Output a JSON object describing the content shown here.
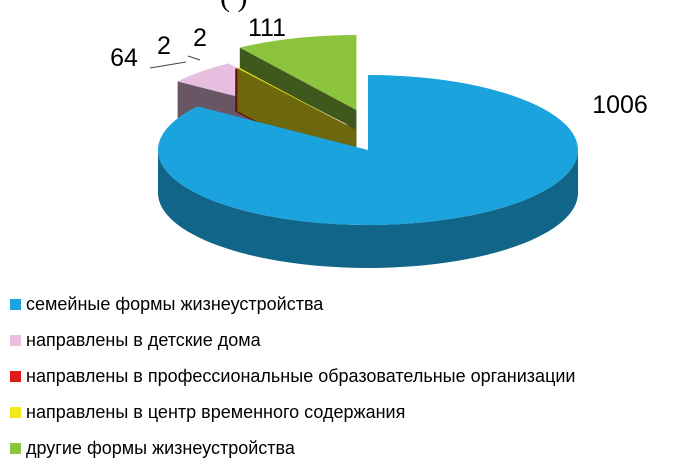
{
  "chart_data": {
    "type": "pie",
    "title": "",
    "categories": [
      "семейные формы жизнеустройства",
      "направлены в детские дома",
      "направлены в профессиональные образовательные организации",
      "направлены в центр временного содержания",
      "другие формы жизнеустройства"
    ],
    "values": [
      1006,
      64,
      2,
      2,
      111
    ],
    "data_labels": [
      "1006",
      "64",
      "2",
      "2",
      "111"
    ],
    "colors": [
      "#1ba3dd",
      "#e8bfe0",
      "#e01a1a",
      "#f2e81c",
      "#8cc43e"
    ],
    "legend_position": "bottom-left",
    "top_text_fragment": "(           )"
  }
}
